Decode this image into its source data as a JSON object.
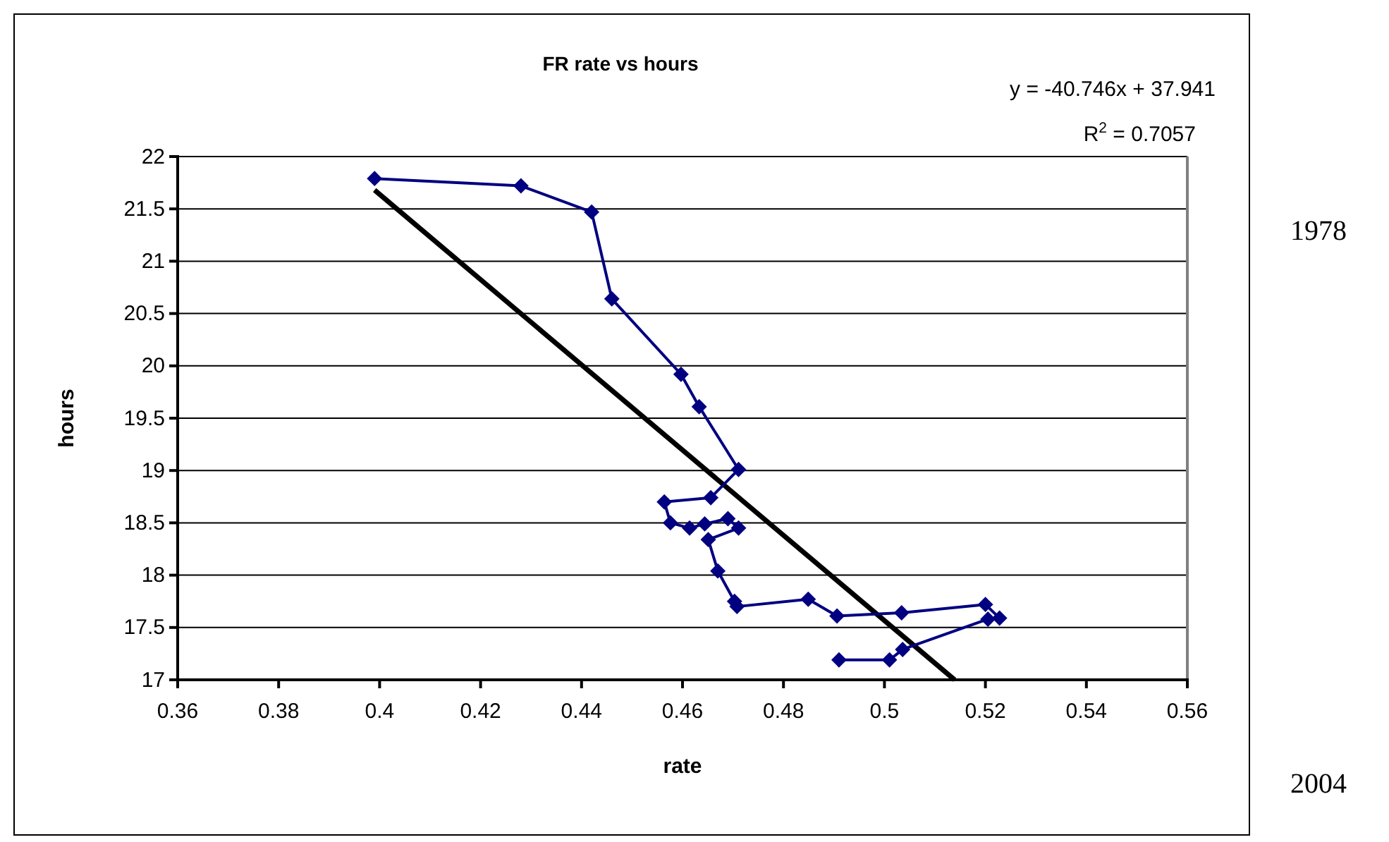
{
  "chart_data": {
    "type": "line",
    "title": "FR rate vs hours",
    "xlabel": "rate",
    "ylabel": "hours",
    "xlim": [
      0.36,
      0.56
    ],
    "xticks": [
      0.36,
      0.38,
      0.4,
      0.42,
      0.44,
      0.46,
      0.48,
      0.5,
      0.52,
      0.54,
      0.56
    ],
    "ylim": [
      17,
      22
    ],
    "yticks": [
      17,
      17.5,
      18,
      18.5,
      19,
      19.5,
      20,
      20.5,
      21,
      21.5,
      22
    ],
    "grid": "y",
    "marker": "diamond",
    "series": [
      {
        "color": "#000080",
        "x": [
          0.399,
          0.428,
          0.442,
          0.446,
          0.4597,
          0.4633,
          0.4711,
          0.4656,
          0.4564,
          0.4576,
          0.4614,
          0.4644,
          0.469,
          0.4711,
          0.4651,
          0.467,
          0.4703,
          0.4708,
          0.4849,
          0.4906,
          0.5034,
          0.52,
          0.5228,
          0.5205,
          0.5036,
          0.501,
          0.491
        ],
        "values": [
          21.79,
          21.72,
          21.47,
          20.64,
          19.92,
          19.61,
          19.01,
          18.74,
          18.7,
          18.5,
          18.45,
          18.49,
          18.54,
          18.45,
          18.34,
          18.04,
          17.75,
          17.7,
          17.77,
          17.61,
          17.64,
          17.72,
          17.59,
          17.58,
          17.29,
          17.19,
          17.19
        ]
      },
      {
        "type": "line",
        "color": "#000000",
        "marker": "none",
        "x": [
          0.399,
          0.5139
        ],
        "values": [
          21.68,
          17
        ]
      }
    ],
    "annotations": [
      "y = -40.746x + 37.941",
      "R$^{2}$ = 0.7057",
      "1978",
      "2004"
    ]
  }
}
